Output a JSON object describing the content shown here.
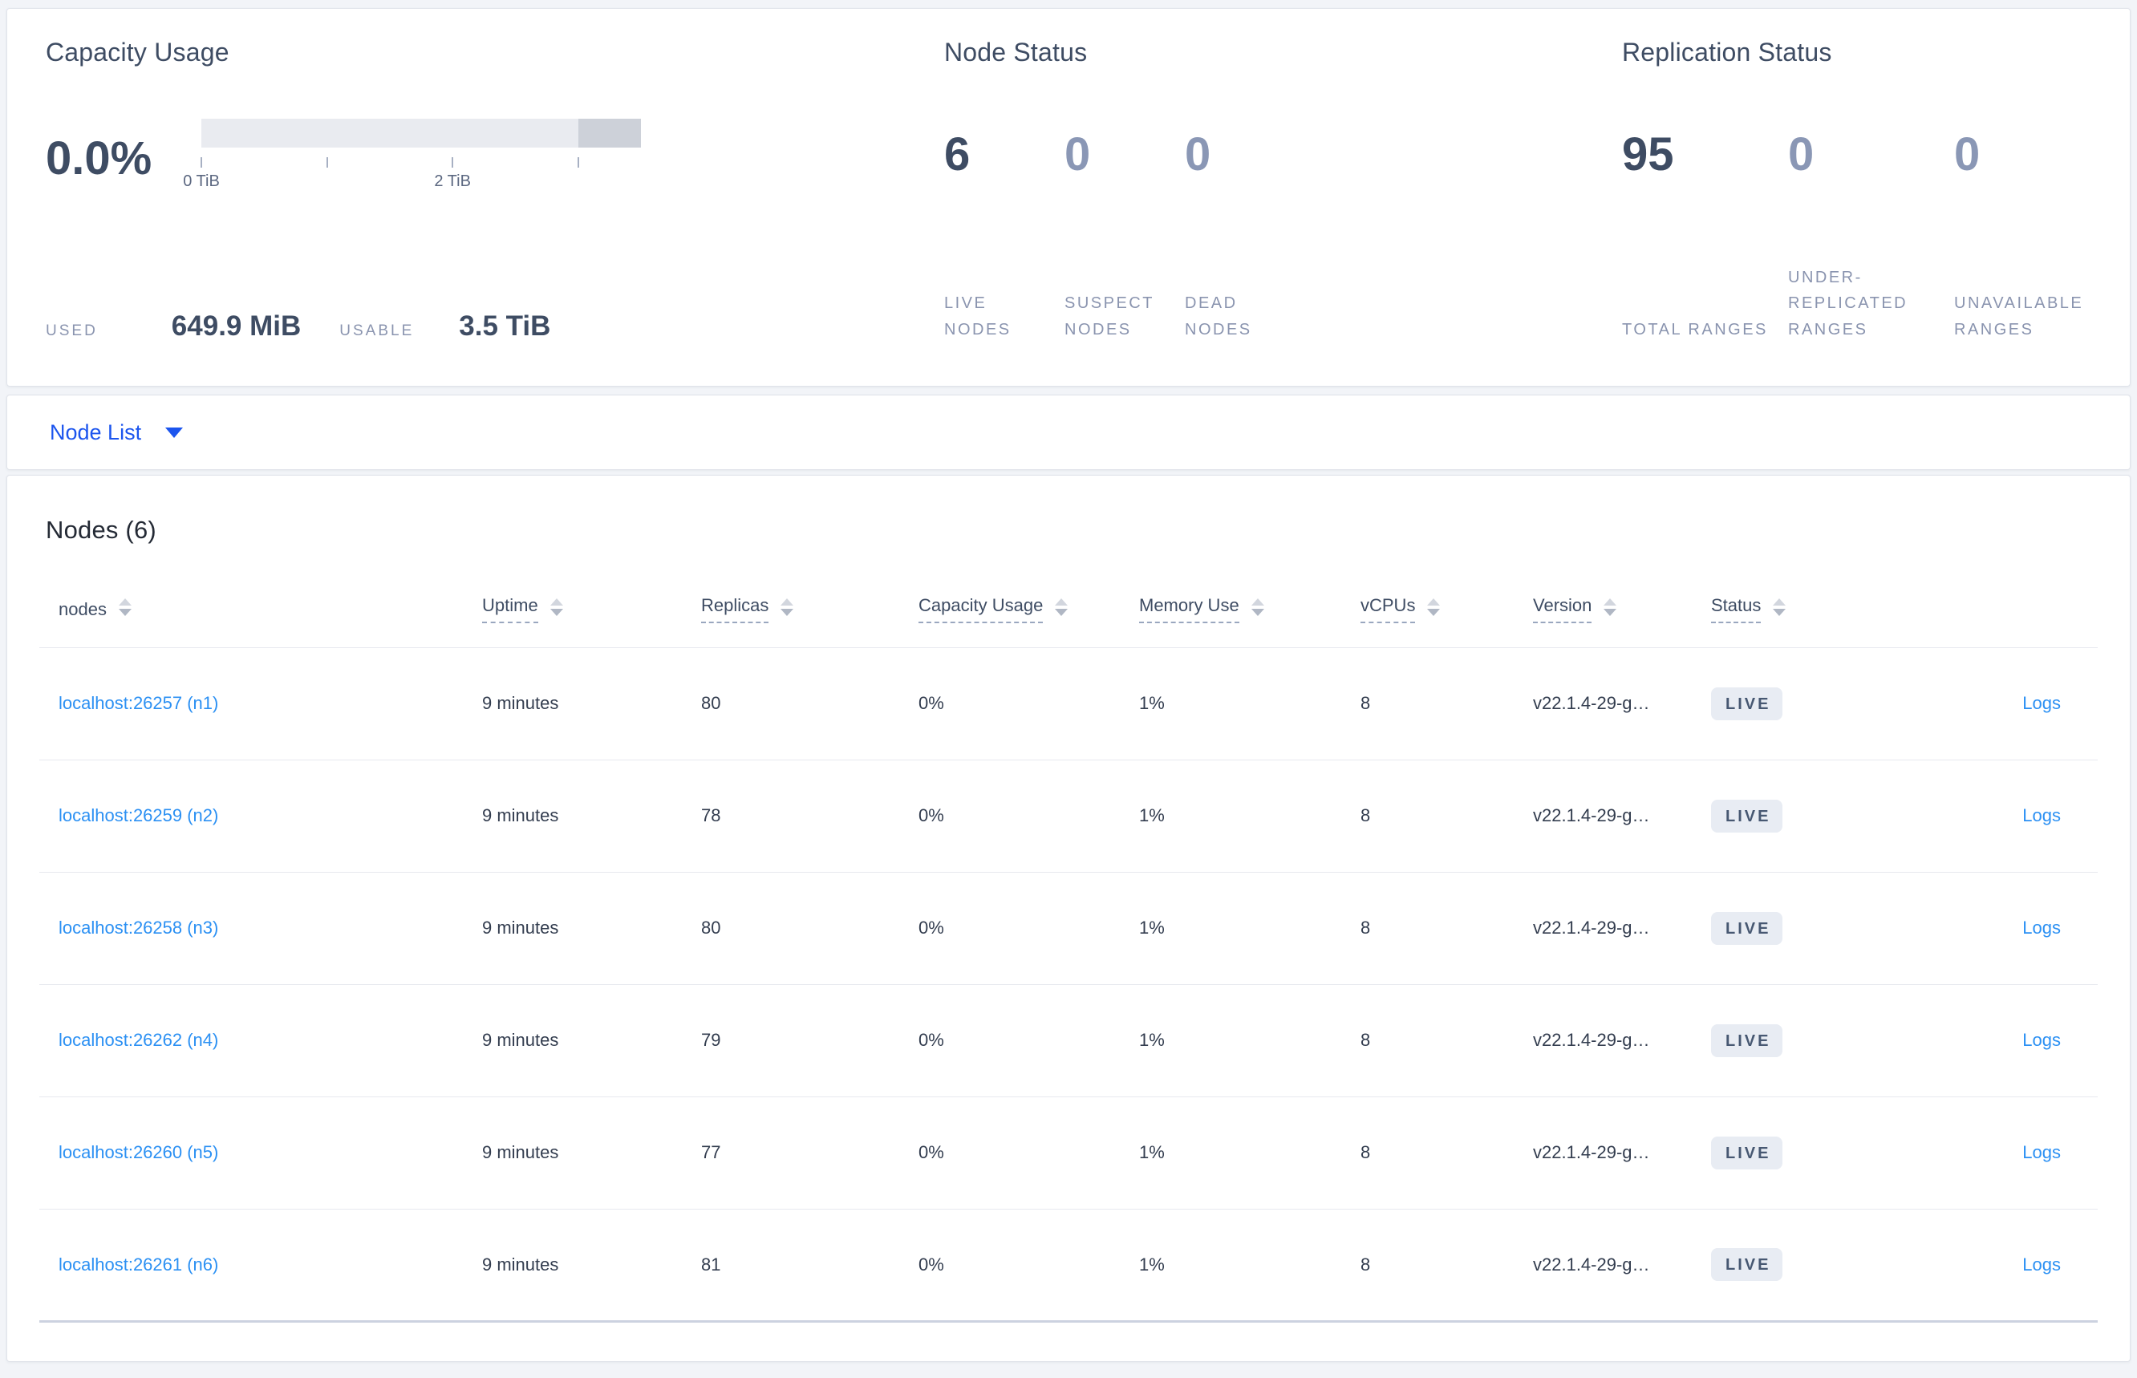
{
  "colors": {
    "link_blue": "#2b90f3",
    "action_blue": "#1c55ee",
    "heading_slate": "#3e4c63",
    "muted_label": "#8a94af",
    "badge_bg": "#e8ecf3",
    "badge_text": "#475872"
  },
  "summary": {
    "capacity": {
      "title": "Capacity Usage",
      "percent": "0.0%",
      "used_fraction_percent": 0,
      "reserved_start_percent": 85.71,
      "ticks": [
        {
          "label": "0 TiB",
          "pos": 0
        },
        {
          "label": "",
          "pos": 28.57
        },
        {
          "label": "2 TiB",
          "pos": 57.14
        },
        {
          "label": "",
          "pos": 85.71
        }
      ],
      "used_label": "USED",
      "used_value": "649.9 MiB",
      "usable_label": "USABLE",
      "usable_value": "3.5 TiB"
    },
    "node_status": {
      "title": "Node Status",
      "stats": [
        {
          "value": "6",
          "label": "LIVE NODES"
        },
        {
          "value": "0",
          "label": "SUSPECT NODES"
        },
        {
          "value": "0",
          "label": "DEAD NODES"
        }
      ]
    },
    "replication": {
      "title": "Replication Status",
      "stats": [
        {
          "value": "95",
          "label": "TOTAL RANGES"
        },
        {
          "value": "0",
          "label": "UNDER-REPLICATED RANGES"
        },
        {
          "value": "0",
          "label": "UNAVAILABLE RANGES"
        }
      ]
    }
  },
  "node_list": {
    "dropdown_label": "Node List"
  },
  "nodes_table": {
    "title": "Nodes (6)",
    "columns": [
      "nodes",
      "Uptime",
      "Replicas",
      "Capacity Usage",
      "Memory Use",
      "vCPUs",
      "Version",
      "Status",
      ""
    ],
    "rows": [
      {
        "node": "localhost:26257 (n1)",
        "uptime": "9 minutes",
        "replicas": "80",
        "capacity": "0%",
        "memory": "1%",
        "vcpus": "8",
        "version": "v22.1.4-29-g…",
        "status": "LIVE",
        "logs": "Logs"
      },
      {
        "node": "localhost:26259 (n2)",
        "uptime": "9 minutes",
        "replicas": "78",
        "capacity": "0%",
        "memory": "1%",
        "vcpus": "8",
        "version": "v22.1.4-29-g…",
        "status": "LIVE",
        "logs": "Logs"
      },
      {
        "node": "localhost:26258 (n3)",
        "uptime": "9 minutes",
        "replicas": "80",
        "capacity": "0%",
        "memory": "1%",
        "vcpus": "8",
        "version": "v22.1.4-29-g…",
        "status": "LIVE",
        "logs": "Logs"
      },
      {
        "node": "localhost:26262 (n4)",
        "uptime": "9 minutes",
        "replicas": "79",
        "capacity": "0%",
        "memory": "1%",
        "vcpus": "8",
        "version": "v22.1.4-29-g…",
        "status": "LIVE",
        "logs": "Logs"
      },
      {
        "node": "localhost:26260 (n5)",
        "uptime": "9 minutes",
        "replicas": "77",
        "capacity": "0%",
        "memory": "1%",
        "vcpus": "8",
        "version": "v22.1.4-29-g…",
        "status": "LIVE",
        "logs": "Logs"
      },
      {
        "node": "localhost:26261 (n6)",
        "uptime": "9 minutes",
        "replicas": "81",
        "capacity": "0%",
        "memory": "1%",
        "vcpus": "8",
        "version": "v22.1.4-29-g…",
        "status": "LIVE",
        "logs": "Logs"
      }
    ]
  }
}
